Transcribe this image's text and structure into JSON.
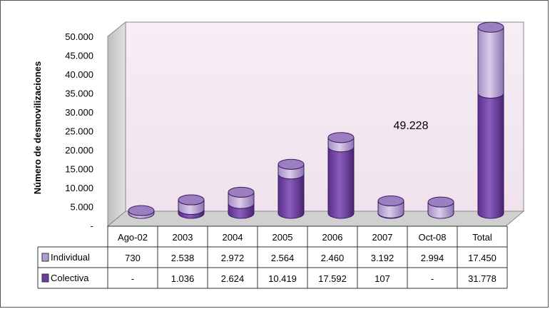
{
  "chart_data": {
    "type": "bar",
    "stacked": true,
    "ylabel": "Número de desmovilizaciones",
    "ylim": [
      0,
      50000
    ],
    "ytick_labels": [
      "-",
      "5.000",
      "10.000",
      "15.000",
      "20.000",
      "25.000",
      "30.000",
      "35.000",
      "40.000",
      "45.000",
      "50.000"
    ],
    "categories": [
      "Ago-02",
      "2003",
      "2004",
      "2005",
      "2006",
      "2007",
      "Oct-08",
      "Total"
    ],
    "series": [
      {
        "name": "Individual",
        "values": [
          730,
          2538,
          2972,
          2564,
          2460,
          3192,
          2994,
          17450
        ],
        "labels": [
          "730",
          "2.538",
          "2.972",
          "2.564",
          "2.460",
          "3.192",
          "2.994",
          "17.450"
        ],
        "color": "#b39dcf"
      },
      {
        "name": "Colectiva",
        "values": [
          0,
          1036,
          2624,
          10419,
          17592,
          107,
          0,
          31778
        ],
        "labels": [
          "-",
          "1.036",
          "2.624",
          "10.419",
          "17.592",
          "107",
          "-",
          "31.778"
        ],
        "color": "#6b3f9c"
      }
    ],
    "annotation": "49.228",
    "legend_placement": "table-left",
    "grid": false,
    "colors": {
      "wall": "#f4eaf2",
      "floor": "#d9d9d9",
      "edge": "#777777"
    }
  }
}
